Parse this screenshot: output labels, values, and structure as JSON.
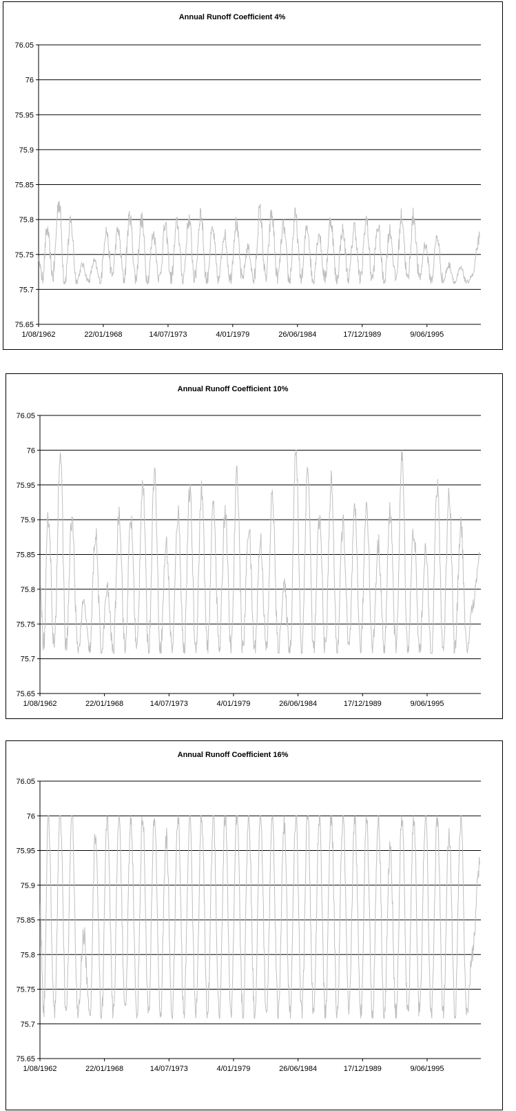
{
  "chart_data": [
    {
      "type": "line",
      "title": "Annual Runoff Coefficient 4%",
      "xlabel": "",
      "ylabel": "",
      "ylim": [
        75.65,
        76.05
      ],
      "yticks": [
        "76.05",
        "76",
        "75.95",
        "75.9",
        "75.85",
        "75.8",
        "75.75",
        "75.7",
        "75.65"
      ],
      "xticks": [
        "1/08/1962",
        "22/01/1968",
        "14/07/1973",
        "4/01/1979",
        "26/06/1984",
        "17/12/1989",
        "9/06/1995"
      ],
      "xrange": [
        "1962-08-01",
        "1999-12-31"
      ],
      "grid": true,
      "color": "#bfbfbf",
      "series": [
        {
          "x": [
            1962.6,
            1962.9,
            1963.3,
            1963.8,
            1964.3,
            1964.8,
            1965.3,
            1965.8,
            1966.3,
            1966.8,
            1967.3,
            1967.8,
            1968.3,
            1968.8,
            1969.3,
            1969.8,
            1970.3,
            1970.8,
            1971.3,
            1971.8,
            1972.3,
            1972.8,
            1973.3,
            1973.8,
            1974.3,
            1974.8,
            1975.3,
            1975.8,
            1976.3,
            1976.8,
            1977.3,
            1977.8,
            1978.3,
            1978.8,
            1979.3,
            1979.8,
            1980.3,
            1980.8,
            1981.3,
            1981.8,
            1982.3,
            1982.8,
            1983.3,
            1983.8,
            1984.3,
            1984.8,
            1985.3,
            1985.8,
            1986.3,
            1986.8,
            1987.3,
            1987.8,
            1988.3,
            1988.8,
            1989.3,
            1989.8,
            1990.3,
            1990.8,
            1991.3,
            1991.8,
            1992.3,
            1992.8,
            1993.3,
            1993.8,
            1994.3,
            1994.8,
            1995.3,
            1995.8,
            1996.3,
            1996.8,
            1997.3,
            1997.8,
            1998.3,
            1998.8,
            1999.3,
            1999.9
          ],
          "y": [
            75.745,
            75.715,
            75.785,
            75.72,
            75.826,
            75.712,
            75.795,
            75.712,
            75.735,
            75.712,
            75.74,
            75.712,
            75.785,
            75.72,
            75.785,
            75.715,
            75.805,
            75.715,
            75.8,
            75.712,
            75.78,
            75.715,
            75.79,
            75.715,
            75.795,
            75.715,
            75.8,
            75.715,
            75.81,
            75.712,
            75.785,
            75.712,
            75.78,
            75.715,
            75.795,
            75.715,
            75.76,
            75.712,
            75.812,
            75.715,
            75.808,
            75.715,
            75.79,
            75.712,
            75.805,
            75.715,
            75.79,
            75.712,
            75.78,
            75.715,
            75.8,
            75.712,
            75.785,
            75.715,
            75.79,
            75.712,
            75.8,
            75.715,
            75.79,
            75.712,
            75.785,
            75.715,
            75.805,
            75.712,
            75.805,
            75.715,
            75.765,
            75.712,
            75.775,
            75.712,
            75.735,
            75.71,
            75.73,
            75.71,
            75.72,
            75.775
          ]
        }
      ]
    },
    {
      "type": "line",
      "title": "Annual Runoff Coefficient 10%",
      "xlabel": "",
      "ylabel": "",
      "ylim": [
        75.65,
        76.05
      ],
      "yticks": [
        "76.05",
        "76",
        "75.95",
        "75.9",
        "75.85",
        "75.8",
        "75.75",
        "75.7",
        "75.65"
      ],
      "xticks": [
        "1/08/1962",
        "22/01/1968",
        "14/07/1973",
        "4/01/1979",
        "26/06/1984",
        "17/12/1989",
        "9/06/1995"
      ],
      "xrange": [
        "1962-08-01",
        "1999-12-31"
      ],
      "grid": true,
      "color": "#bfbfbf",
      "series": [
        {
          "x": [
            1962.6,
            1962.9,
            1963.3,
            1963.8,
            1964.3,
            1964.8,
            1965.3,
            1965.8,
            1966.3,
            1966.8,
            1967.3,
            1967.8,
            1968.3,
            1968.8,
            1969.3,
            1969.8,
            1970.3,
            1970.8,
            1971.3,
            1971.8,
            1972.3,
            1972.8,
            1973.3,
            1973.8,
            1974.3,
            1974.8,
            1975.3,
            1975.8,
            1976.3,
            1976.8,
            1977.3,
            1977.8,
            1978.3,
            1978.8,
            1979.3,
            1979.8,
            1980.3,
            1980.8,
            1981.3,
            1981.8,
            1982.3,
            1982.8,
            1983.3,
            1983.8,
            1984.3,
            1984.8,
            1985.3,
            1985.8,
            1986.3,
            1986.8,
            1987.3,
            1987.8,
            1988.3,
            1988.8,
            1989.3,
            1989.8,
            1990.3,
            1990.8,
            1991.3,
            1991.8,
            1992.3,
            1992.8,
            1993.3,
            1993.8,
            1994.3,
            1994.8,
            1995.3,
            1995.8,
            1996.3,
            1996.8,
            1997.3,
            1997.8,
            1998.3,
            1998.8,
            1999.3,
            1999.9
          ],
          "y": [
            75.8,
            75.72,
            75.905,
            75.715,
            75.998,
            75.715,
            75.9,
            75.71,
            75.78,
            75.71,
            75.88,
            75.71,
            75.8,
            75.71,
            75.912,
            75.712,
            75.9,
            75.712,
            75.955,
            75.712,
            75.97,
            75.712,
            75.865,
            75.712,
            75.91,
            75.712,
            75.94,
            75.712,
            75.942,
            75.712,
            75.925,
            75.712,
            75.915,
            75.712,
            75.965,
            75.712,
            75.89,
            75.712,
            75.87,
            75.712,
            75.935,
            75.712,
            75.805,
            75.712,
            75.998,
            75.712,
            75.975,
            75.712,
            75.9,
            75.712,
            75.955,
            75.712,
            75.895,
            75.712,
            75.91,
            75.712,
            75.925,
            75.712,
            75.865,
            75.712,
            75.915,
            75.712,
            75.99,
            75.712,
            75.885,
            75.712,
            75.855,
            75.712,
            75.945,
            75.712,
            75.94,
            75.712,
            75.895,
            75.71,
            75.775,
            75.85
          ]
        }
      ]
    },
    {
      "type": "line",
      "title": "Annual Runoff Coefficient 16%",
      "xlabel": "",
      "ylabel": "",
      "ylim": [
        75.65,
        76.05
      ],
      "yticks": [
        "76.05",
        "76",
        "75.95",
        "75.9",
        "75.85",
        "75.8",
        "75.75",
        "75.7",
        "75.65"
      ],
      "xticks": [
        "1/08/1962",
        "22/01/1968",
        "14/07/1973",
        "4/01/1979",
        "26/06/1984",
        "17/12/1989",
        "9/06/1995"
      ],
      "xrange": [
        "1962-08-01",
        "1999-12-31"
      ],
      "grid": true,
      "color": "#bfbfbf",
      "series": [
        {
          "x": [
            1962.6,
            1962.9,
            1963.3,
            1963.8,
            1964.3,
            1964.8,
            1965.3,
            1965.8,
            1966.3,
            1966.8,
            1967.3,
            1967.8,
            1968.3,
            1968.8,
            1969.3,
            1969.8,
            1970.3,
            1970.8,
            1971.3,
            1971.8,
            1972.3,
            1972.8,
            1973.3,
            1973.8,
            1974.3,
            1974.8,
            1975.3,
            1975.8,
            1976.3,
            1976.8,
            1977.3,
            1977.8,
            1978.3,
            1978.8,
            1979.3,
            1979.8,
            1980.3,
            1980.8,
            1981.3,
            1981.8,
            1982.3,
            1982.8,
            1983.3,
            1983.8,
            1984.3,
            1984.8,
            1985.3,
            1985.8,
            1986.3,
            1986.8,
            1987.3,
            1987.8,
            1988.3,
            1988.8,
            1989.3,
            1989.8,
            1990.3,
            1990.8,
            1991.3,
            1991.8,
            1992.3,
            1992.8,
            1993.3,
            1993.8,
            1994.3,
            1994.8,
            1995.3,
            1995.8,
            1996.3,
            1996.8,
            1997.3,
            1997.8,
            1998.3,
            1998.8,
            1999.3,
            1999.9
          ],
          "y": [
            75.865,
            75.72,
            76.0,
            75.712,
            76.0,
            75.712,
            76.0,
            75.71,
            75.83,
            75.71,
            75.975,
            75.71,
            76.0,
            75.71,
            76.0,
            75.712,
            76.0,
            75.712,
            76.0,
            75.712,
            76.0,
            75.712,
            75.97,
            75.712,
            76.0,
            75.712,
            76.0,
            75.712,
            76.0,
            75.712,
            76.0,
            75.712,
            76.0,
            75.712,
            76.0,
            75.712,
            76.0,
            75.712,
            76.0,
            75.712,
            76.0,
            75.712,
            75.99,
            75.712,
            76.0,
            75.712,
            76.0,
            75.712,
            76.0,
            75.712,
            76.0,
            75.712,
            76.0,
            75.712,
            76.0,
            75.712,
            76.0,
            75.712,
            76.0,
            75.712,
            75.955,
            75.712,
            76.0,
            75.712,
            76.0,
            75.712,
            76.0,
            75.712,
            76.0,
            75.712,
            75.97,
            75.712,
            76.0,
            75.71,
            75.805,
            75.93
          ]
        }
      ]
    }
  ]
}
